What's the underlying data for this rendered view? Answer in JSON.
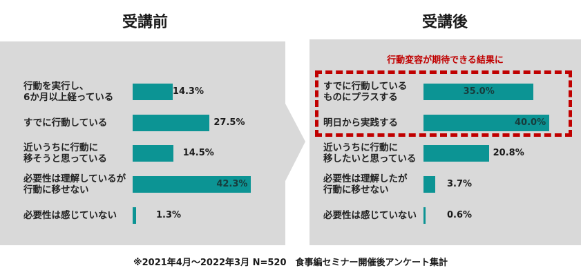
{
  "colors": {
    "panel_bg": "#d9d9d9",
    "bar": "#0c9494",
    "highlight": "#c00000"
  },
  "chart_data": [
    {
      "type": "bar",
      "orientation": "horizontal",
      "title": "受講前",
      "xlim": [
        0,
        45
      ],
      "categories": [
        "行動を実行し、\n6か月以上経っている",
        "すでに行動している",
        "近いうちに行動に\n移そうと思っている",
        "必要性は理解しているが\n行動に移せない",
        "必要性は感じていない"
      ],
      "values": [
        14.3,
        27.5,
        14.5,
        42.3,
        1.3
      ],
      "value_labels": [
        "14.3%",
        "27.5%",
        "14.5%",
        "42.3%",
        "1.3%"
      ]
    },
    {
      "type": "bar",
      "orientation": "horizontal",
      "title": "受講後",
      "xlim": [
        0,
        45
      ],
      "annotation": "行動変容が期待できる結果に",
      "categories": [
        "すでに行動している\nものにプラスする",
        "明日から実践する",
        "近いうちに行動に\n移したいと思っている",
        "必要性は理解したが\n行動に移せない",
        "必要性は感じていない"
      ],
      "values": [
        35.0,
        40.0,
        20.8,
        3.7,
        0.6
      ],
      "value_labels": [
        "35.0%",
        "40.0%",
        "20.8%",
        "3.7%",
        "0.6%"
      ],
      "highlighted_categories": [
        0,
        1
      ]
    }
  ],
  "footnote": "※2021年4月〜2022年3月 N=520　食事編セミナー開催後アンケート集計"
}
